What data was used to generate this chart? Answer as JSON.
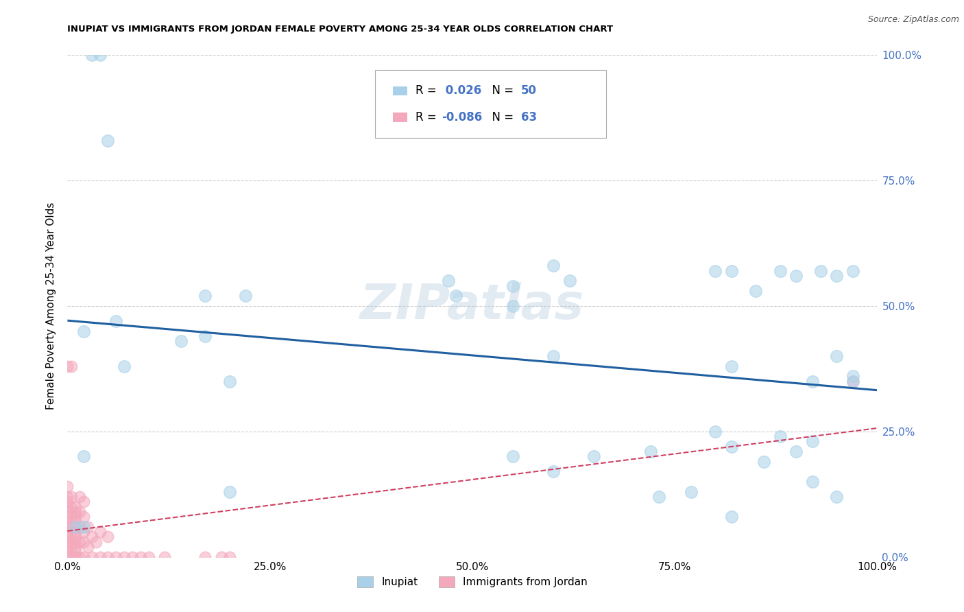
{
  "title": "INUPIAT VS IMMIGRANTS FROM JORDAN FEMALE POVERTY AMONG 25-34 YEAR OLDS CORRELATION CHART",
  "source": "Source: ZipAtlas.com",
  "ylabel": "Female Poverty Among 25-34 Year Olds",
  "xlim": [
    0,
    1.0
  ],
  "ylim": [
    0,
    1.0
  ],
  "xtick_labels": [
    "0.0%",
    "25.0%",
    "50.0%",
    "75.0%",
    "100.0%"
  ],
  "xtick_vals": [
    0.0,
    0.25,
    0.5,
    0.75,
    1.0
  ],
  "ytick_labels_right": [
    "100.0%",
    "75.0%",
    "50.0%",
    "25.0%",
    "0.0%"
  ],
  "ytick_vals": [
    0.0,
    0.25,
    0.5,
    0.75,
    1.0
  ],
  "inupiat_color": "#a8d0e8",
  "jordan_color": "#f4a8bc",
  "inupiat_line_color": "#2060a0",
  "jordan_line_color": "#d04060",
  "inupiat_R": "0.026",
  "inupiat_N": "50",
  "jordan_R": "-0.086",
  "jordan_N": "63",
  "legend_label_1": "Inupiat",
  "legend_label_2": "Immigrants from Jordan",
  "watermark": "ZIPatlas",
  "grid_color": "#cccccc",
  "inupiat_x": [
    0.03,
    0.04,
    0.05,
    0.06,
    0.02,
    0.17,
    0.22,
    0.17,
    0.07,
    0.14,
    0.2,
    0.47,
    0.48,
    0.55,
    0.6,
    0.62,
    0.55,
    0.6,
    0.8,
    0.82,
    0.85,
    0.88,
    0.9,
    0.93,
    0.95,
    0.97,
    0.55,
    0.6,
    0.72,
    0.82,
    0.88,
    0.92,
    0.95,
    0.97,
    0.82,
    0.95,
    0.92,
    0.82,
    0.86,
    0.9,
    0.77,
    0.2,
    0.73,
    0.65,
    0.8,
    0.02,
    0.01,
    0.02,
    0.92,
    0.97
  ],
  "inupiat_y": [
    1.0,
    1.0,
    0.83,
    0.47,
    0.45,
    0.52,
    0.52,
    0.44,
    0.38,
    0.43,
    0.35,
    0.55,
    0.52,
    0.5,
    0.58,
    0.55,
    0.54,
    0.4,
    0.57,
    0.57,
    0.53,
    0.57,
    0.56,
    0.57,
    0.56,
    0.57,
    0.2,
    0.17,
    0.21,
    0.22,
    0.24,
    0.23,
    0.12,
    0.35,
    0.38,
    0.4,
    0.15,
    0.08,
    0.19,
    0.21,
    0.13,
    0.13,
    0.12,
    0.2,
    0.25,
    0.2,
    0.06,
    0.06,
    0.35,
    0.36
  ],
  "jordan_x": [
    0.0,
    0.0,
    0.0,
    0.0,
    0.0,
    0.0,
    0.0,
    0.0,
    0.0,
    0.0,
    0.0,
    0.0,
    0.0,
    0.0,
    0.0,
    0.005,
    0.005,
    0.005,
    0.005,
    0.005,
    0.005,
    0.005,
    0.005,
    0.01,
    0.01,
    0.01,
    0.01,
    0.01,
    0.01,
    0.01,
    0.01,
    0.01,
    0.01,
    0.01,
    0.015,
    0.015,
    0.015,
    0.015,
    0.015,
    0.02,
    0.02,
    0.02,
    0.02,
    0.02,
    0.025,
    0.025,
    0.03,
    0.03,
    0.035,
    0.04,
    0.04,
    0.05,
    0.05,
    0.06,
    0.07,
    0.08,
    0.09,
    0.1,
    0.12,
    0.17,
    0.19,
    0.2,
    0.97
  ],
  "jordan_y": [
    0.0,
    0.01,
    0.02,
    0.03,
    0.04,
    0.05,
    0.06,
    0.07,
    0.08,
    0.09,
    0.1,
    0.11,
    0.12,
    0.14,
    0.38,
    0.0,
    0.02,
    0.04,
    0.06,
    0.08,
    0.1,
    0.12,
    0.38,
    0.0,
    0.01,
    0.02,
    0.03,
    0.04,
    0.05,
    0.06,
    0.07,
    0.08,
    0.09,
    0.1,
    0.0,
    0.03,
    0.06,
    0.09,
    0.12,
    0.0,
    0.03,
    0.05,
    0.08,
    0.11,
    0.02,
    0.06,
    0.0,
    0.04,
    0.03,
    0.0,
    0.05,
    0.0,
    0.04,
    0.0,
    0.0,
    0.0,
    0.0,
    0.0,
    0.0,
    0.0,
    0.0,
    0.0,
    0.35
  ]
}
